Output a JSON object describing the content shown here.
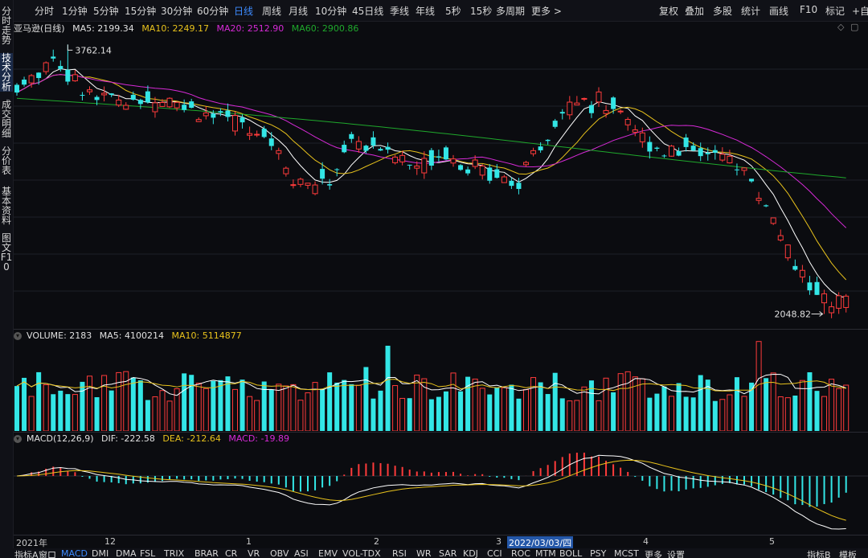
{
  "top_nav": {
    "left": [
      "分时",
      "1分钟",
      "5分钟",
      "15分钟",
      "30分钟",
      "60分钟",
      "日线",
      "周线",
      "月线",
      "10分钟",
      "45日线",
      "季线",
      "年线",
      "5秒",
      "15秒",
      "多周期",
      "更多 >"
    ],
    "active": "日线",
    "right": [
      "复权",
      "叠加",
      "多股",
      "统计",
      "画线",
      "F10",
      "标记",
      "+自选"
    ]
  },
  "side_tabs": [
    "分时走势",
    "技术分析",
    "成交明细",
    "分价表",
    "基本资料",
    "图文F10"
  ],
  "side_active": "技术分析",
  "main": {
    "title": "亚马逊(日线)",
    "ma5": "MA5: 2199.34",
    "ma10": "MA10: 2249.17",
    "ma20": "MA20: 2512.90",
    "ma60": "MA60: 2900.86",
    "high_label": "3762.14",
    "low_label": "2048.82",
    "toggle_icons": [
      "◇",
      "▢"
    ]
  },
  "volume": {
    "label": "VOLUME: 2183",
    "ma5": "MA5: 4100214",
    "ma10": "MA10: 5114877"
  },
  "macd": {
    "label": "MACD(12,26,9)",
    "dif": "DIF: -222.58",
    "dea": "DEA: -212.64",
    "macd": "MACD: -19.89"
  },
  "x_axis": {
    "labels": [
      "2021年",
      "12",
      "1",
      "2",
      "3",
      "2022/03/03/四",
      "4",
      "5"
    ]
  },
  "bottom_tabs": {
    "items": [
      "指标A",
      "窗口",
      "MACD",
      "DMI",
      "DMA",
      "FSL",
      "TRIX",
      "BRAR",
      "CR",
      "VR",
      "OBV",
      "ASI",
      "EMV",
      "VOL-TDX",
      "RSI",
      "WR",
      "SAR",
      "KDJ",
      "CCI",
      "ROC",
      "MTM",
      "BOLL",
      "PSY",
      "MCST",
      "更多",
      "设置"
    ],
    "active": "MACD",
    "right": [
      "指标B",
      "模板"
    ]
  },
  "colors": {
    "up": "#ff3b3b",
    "down": "#33e6e6",
    "ma5": "#ffffff",
    "ma10": "#e8c21c",
    "ma20": "#d62ad6",
    "ma60": "#1fa82c",
    "active_blue": "#3d8bff"
  },
  "chart_data": {
    "type": "candlestick",
    "title": "亚马逊(日线)",
    "price_range": [
      2048.82,
      3762.14
    ],
    "high": 3762.14,
    "low": 2048.82,
    "moving_averages": [
      {
        "name": "MA5",
        "value": 2199.34
      },
      {
        "name": "MA10",
        "value": 2249.17
      },
      {
        "name": "MA20",
        "value": 2512.9
      },
      {
        "name": "MA60",
        "value": 2900.86
      }
    ],
    "volume": {
      "value": 2183,
      "ma5": 4100214,
      "ma10": 5114877
    },
    "macd": {
      "params": "12,26,9",
      "dif": -222.58,
      "dea": -212.64,
      "macd": -19.89
    },
    "x_tick_labels": [
      "2021年",
      "12",
      "1",
      "2",
      "3",
      "2022/03/03/四",
      "4",
      "5"
    ]
  }
}
